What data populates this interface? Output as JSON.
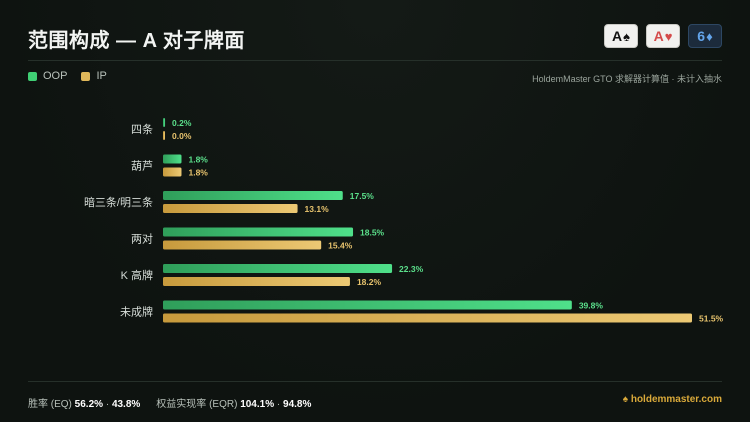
{
  "header": {
    "title": "范围构成 — A 对子牌面",
    "board": [
      {
        "rank": "A",
        "suit": "♠",
        "name": "spade-icon"
      },
      {
        "rank": "A",
        "suit": "♥",
        "name": "heart-icon"
      },
      {
        "rank": "6",
        "suit": "♦",
        "name": "diamond-icon"
      }
    ]
  },
  "legend": {
    "oop": "OOP",
    "ip": "IP",
    "note": "HoldemMaster GTO 求解器计算值 · 未计入抽水"
  },
  "colors": {
    "oop": "#3fcf74",
    "ip": "#e0b85a",
    "oop_label": "#5be08b",
    "ip_label": "#e8c46e"
  },
  "chart_data": {
    "type": "bar",
    "orientation": "horizontal",
    "categories": [
      "四条",
      "葫芦",
      "暗三条/明三条",
      "两对",
      "K 高牌",
      "未成牌"
    ],
    "series": [
      {
        "name": "OOP",
        "values": [
          0.2,
          1.8,
          17.5,
          18.5,
          22.3,
          39.8
        ]
      },
      {
        "name": "IP",
        "values": [
          0.0,
          1.8,
          13.1,
          15.4,
          18.2,
          51.5
        ]
      }
    ],
    "unit": "%",
    "xlim": [
      0,
      51.5
    ],
    "grid": false,
    "legend_position": "top-left"
  },
  "footer": {
    "equity_label": "胜率 (EQ)",
    "equity_oop": "56.2%",
    "equity_sep": "·",
    "equity_ip": "43.8%",
    "eqr_label": "权益实现率 (EQR)",
    "eqr_oop": "104.1%",
    "eqr_sep": "·",
    "eqr_ip": "94.8%",
    "brand_icon": "spade-icon",
    "brand": "holdemmaster.com"
  }
}
